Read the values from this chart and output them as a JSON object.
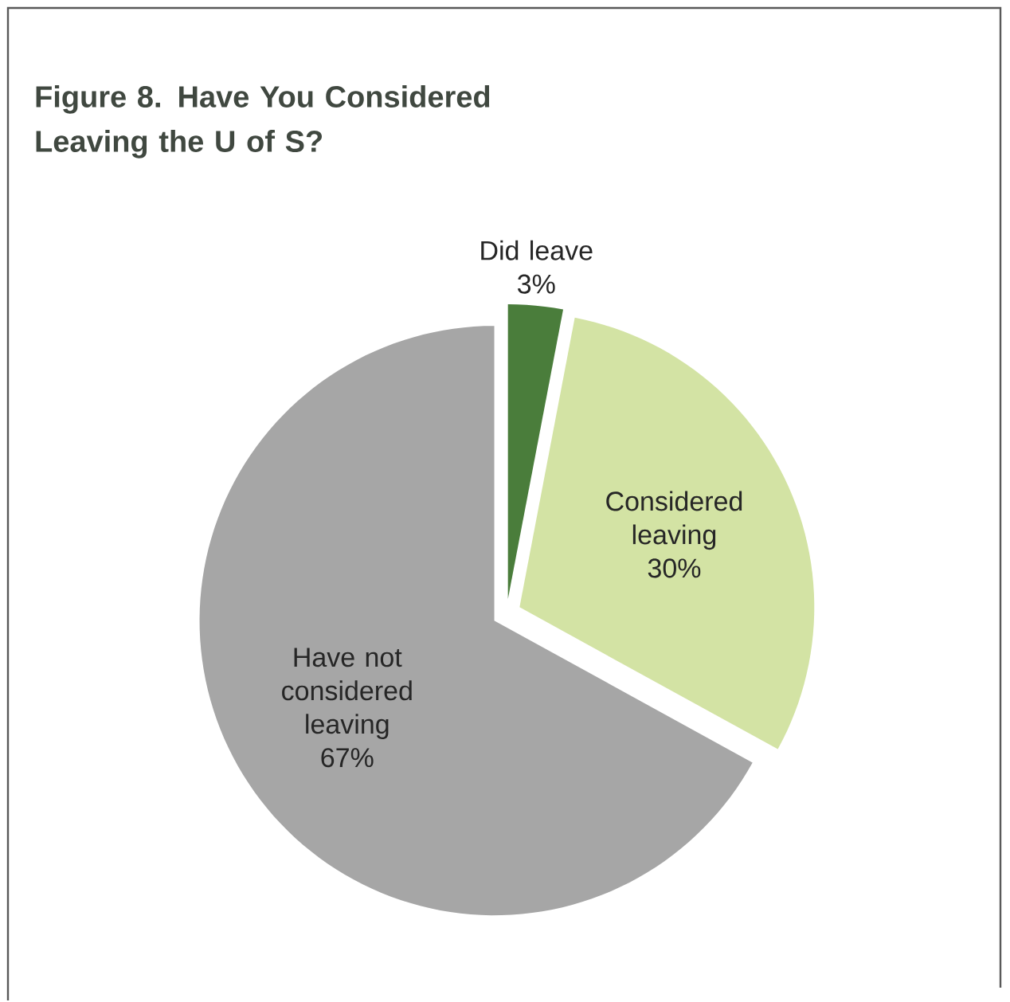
{
  "chart_data": {
    "type": "pie",
    "title": "Figure 8. Have You Considered Leaving the U of S?",
    "categories": [
      "Did leave",
      "Considered leaving",
      "Have not considered leaving"
    ],
    "values": [
      3,
      30,
      67
    ],
    "colors": [
      "#4a7d3b",
      "#d3e3a4",
      "#a6a6a6"
    ],
    "value_labels": [
      "3%",
      "30%",
      "67%"
    ]
  }
}
